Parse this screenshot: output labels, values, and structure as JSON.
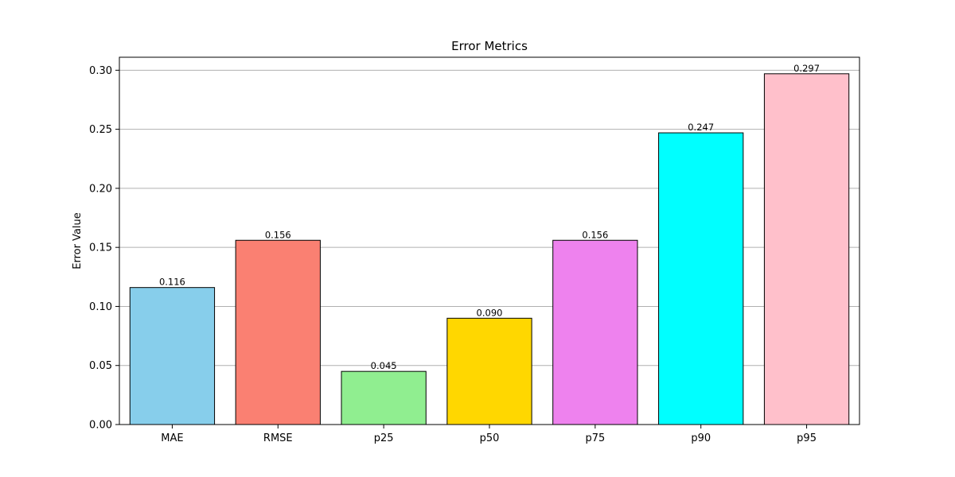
{
  "chart_data": {
    "type": "bar",
    "title": "Error Metrics",
    "xlabel": "",
    "ylabel": "Error Value",
    "categories": [
      "MAE",
      "RMSE",
      "p25",
      "p50",
      "p75",
      "p90",
      "p95"
    ],
    "values": [
      0.116,
      0.156,
      0.045,
      0.09,
      0.156,
      0.247,
      0.297
    ],
    "value_labels": [
      "0.116",
      "0.156",
      "0.045",
      "0.090",
      "0.156",
      "0.247",
      "0.297"
    ],
    "colors": [
      "#87ceeb",
      "#fa8072",
      "#90ee90",
      "#ffd700",
      "#ee82ee",
      "#00ffff",
      "#ffc0cb"
    ],
    "edge_color": "#000000",
    "ylim": [
      0,
      0.311
    ],
    "yticks": [
      0.0,
      0.05,
      0.1,
      0.15,
      0.2,
      0.25,
      0.3
    ],
    "ytick_labels": [
      "0.00",
      "0.05",
      "0.10",
      "0.15",
      "0.20",
      "0.25",
      "0.30"
    ],
    "grid": "y",
    "grid_color": "#b0b0b0",
    "legend": "none"
  }
}
